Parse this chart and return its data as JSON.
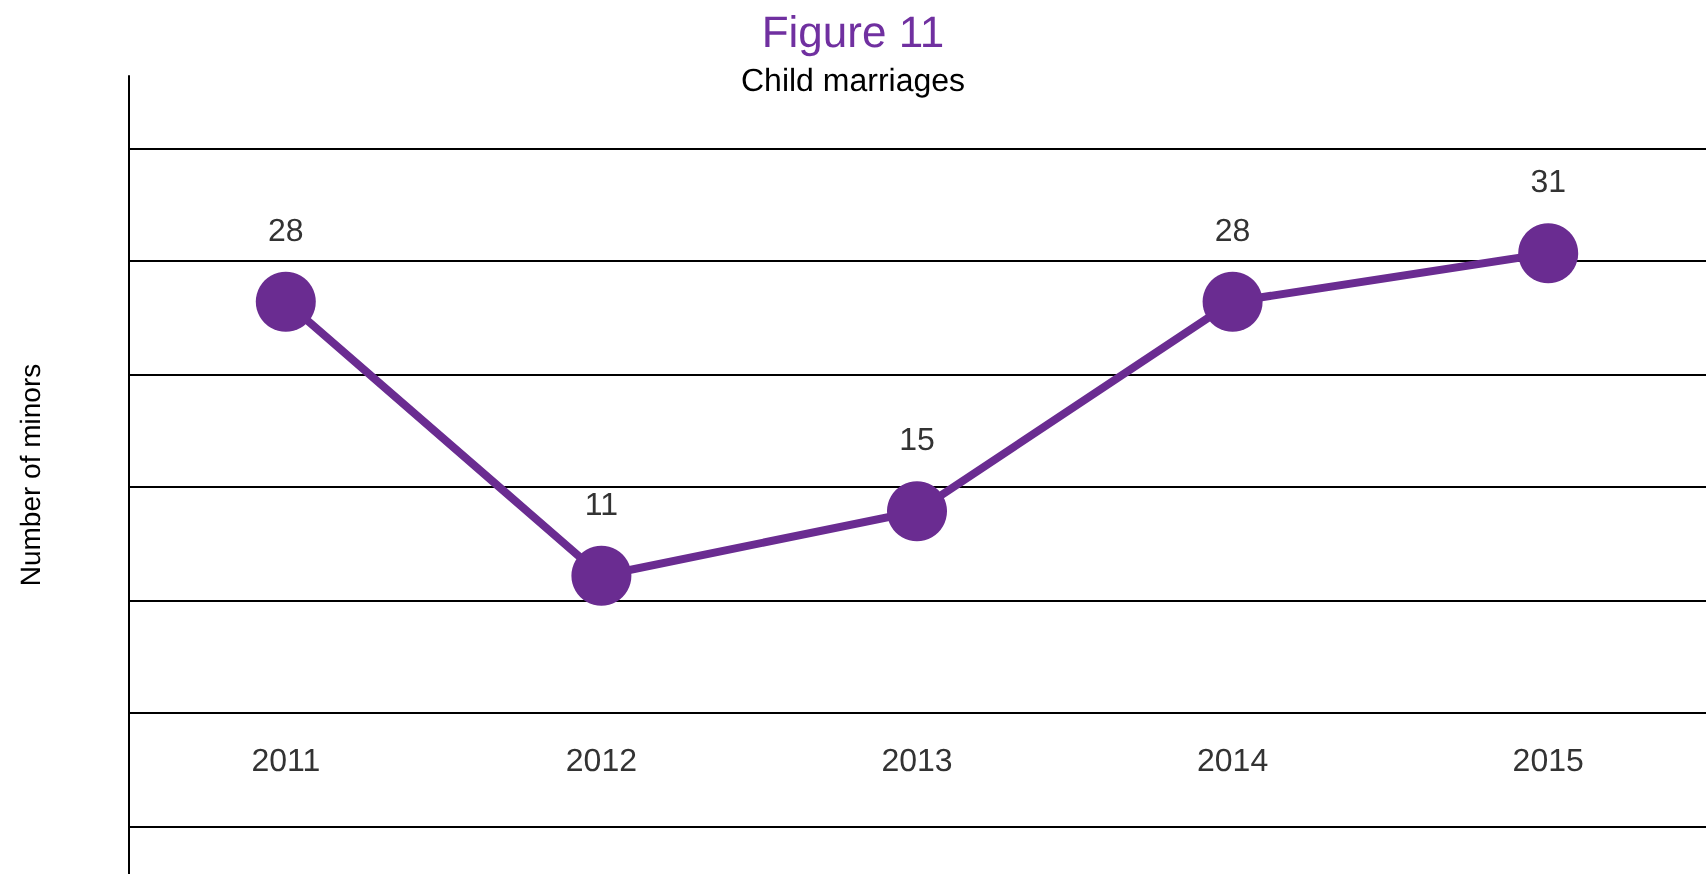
{
  "chart_data": {
    "type": "line",
    "title": "Figure 11",
    "subtitle": "Child marriages",
    "ylabel": "Number of minors",
    "categories": [
      "2011",
      "2012",
      "2013",
      "2014",
      "2015"
    ],
    "series": [
      {
        "color": "#6a2c91",
        "values": [
          28,
          11,
          15,
          28,
          31
        ]
      }
    ],
    "ylim": [
      -7.5,
      42
    ],
    "yticks": [
      {
        "value": -4.5,
        "label": null
      },
      {
        "value": 2.5,
        "label": null
      },
      {
        "value": 9.5,
        "label": null
      },
      {
        "value": 16.5,
        "label": null
      },
      {
        "value": 23.5,
        "label": null
      },
      {
        "value": 30.5,
        "label": null
      },
      {
        "value": 37.5,
        "label": null
      }
    ],
    "tick_labels": "x",
    "grid": "y",
    "marker": "circle",
    "line_style": "solid",
    "data_labels": true
  }
}
